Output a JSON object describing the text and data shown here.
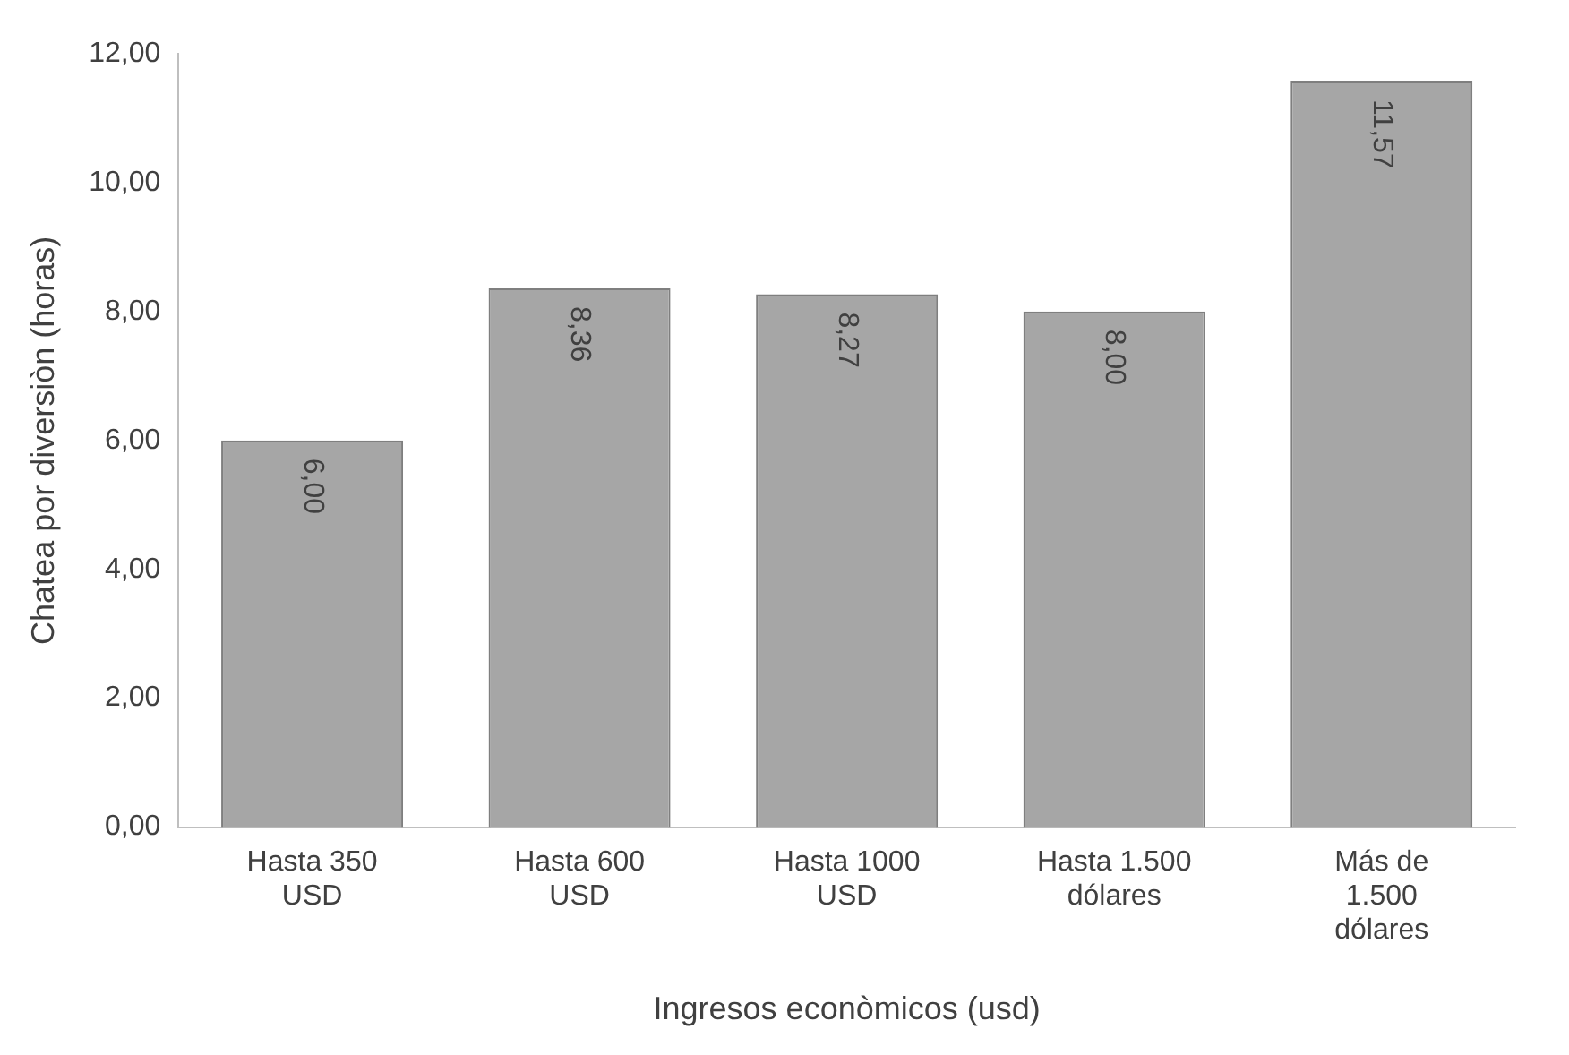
{
  "chart_data": {
    "type": "bar",
    "xlabel": "Ingresos econòmicos (usd)",
    "ylabel": "Chatea por diversiòn (horas)",
    "categories": [
      "Hasta 350 USD",
      "Hasta 600 USD",
      "Hasta 1000 USD",
      "Hasta 1.500 dólares",
      "Más de 1.500 dólares"
    ],
    "values": [
      6.0,
      8.36,
      8.27,
      8.0,
      11.57
    ],
    "value_labels": [
      "6,00",
      "8,36",
      "8,27",
      "8,00",
      "11,57"
    ],
    "color": "#a6a6a6",
    "ylim": [
      0,
      12
    ],
    "yticks": [
      {
        "value": 0,
        "label": "0,00"
      },
      {
        "value": 2,
        "label": "2,00"
      },
      {
        "value": 4,
        "label": "4,00"
      },
      {
        "value": 6,
        "label": "6,00"
      },
      {
        "value": 8,
        "label": "8,00"
      },
      {
        "value": 10,
        "label": "10,00"
      },
      {
        "value": 12,
        "label": "12,00"
      }
    ],
    "grid": false,
    "legend": false
  }
}
